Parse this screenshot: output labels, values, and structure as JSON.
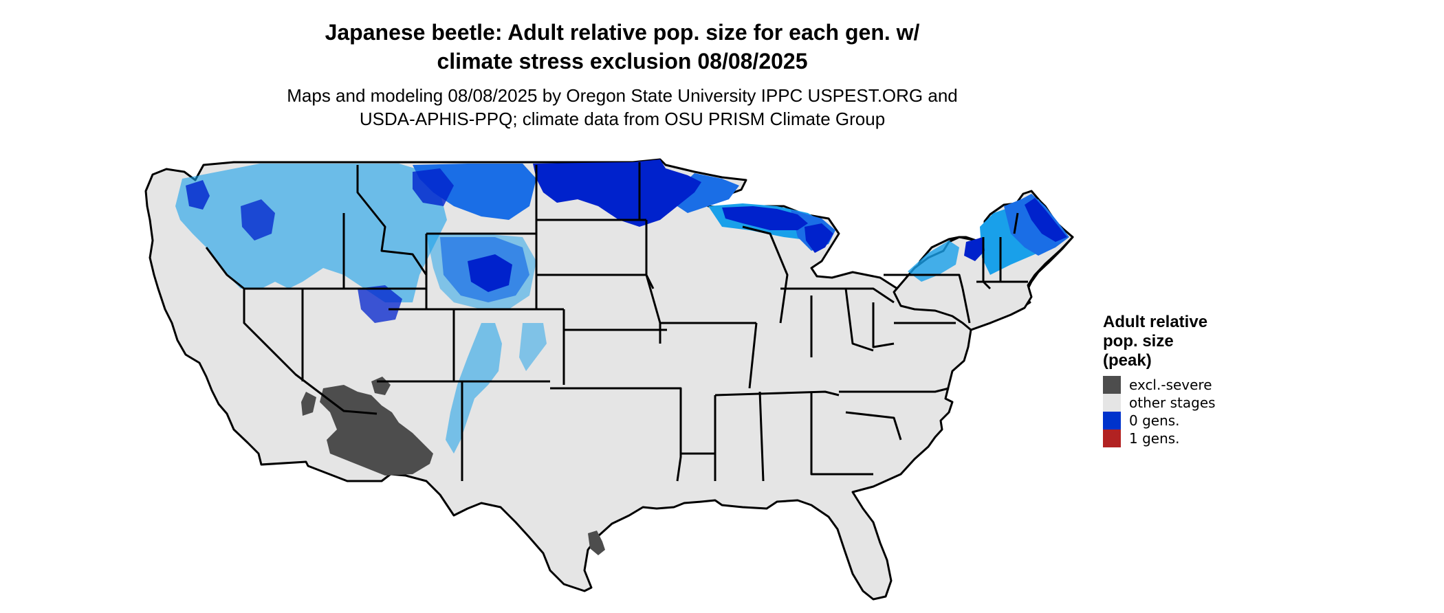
{
  "header": {
    "title_line1": "Japanese beetle: Adult relative pop. size for each gen. w/",
    "title_line2": "climate stress exclusion 08/08/2025",
    "subtitle_line1": "Maps and modeling 08/08/2025 by Oregon State University IPPC USPEST.ORG and",
    "subtitle_line2": "USDA-APHIS-PPQ; climate data from OSU PRISM Climate Group"
  },
  "legend": {
    "title_line1": "Adult relative",
    "title_line2": "pop. size",
    "title_line3": "(peak)",
    "items": [
      {
        "label": "excl.-severe",
        "color": "#4d4d4d"
      },
      {
        "label": "other stages",
        "color": "#e5e5e5"
      },
      {
        "label": "0 gens.",
        "color": "#0033cc"
      },
      {
        "label": "1 gens.",
        "color": "#b22222"
      }
    ]
  },
  "map": {
    "region": "Contiguous United States",
    "colors": {
      "land": "#e5e5e5",
      "excluded": "#4d4d4d",
      "zero_gens_dark": "#0022cc",
      "zero_gens_mid": "#1a6ee6",
      "zero_gens_light": "#19a0ea",
      "border": "#000000"
    }
  }
}
